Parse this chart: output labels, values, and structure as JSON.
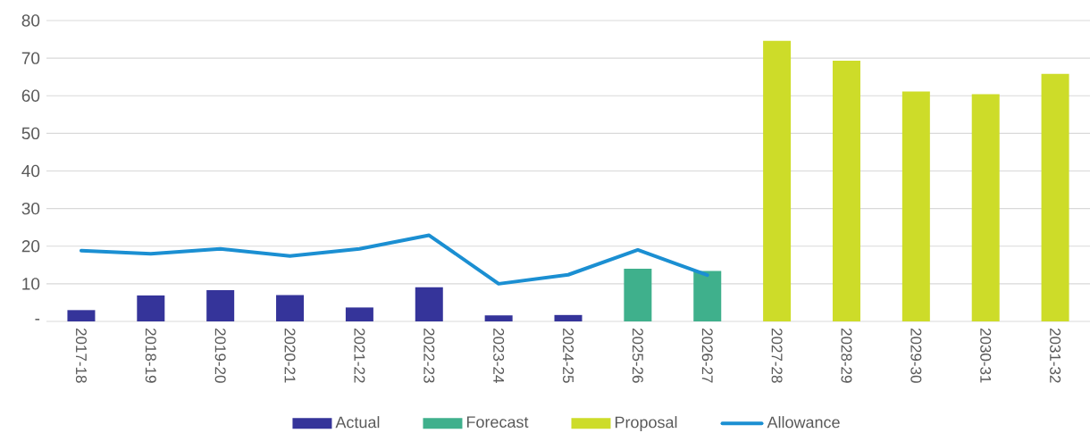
{
  "chart_data": {
    "type": "bar",
    "categories": [
      "2017-18",
      "2018-19",
      "2019-20",
      "2020-21",
      "2021-22",
      "2022-23",
      "2023-24",
      "2024-25",
      "2025-26",
      "2026-27",
      "2027-28",
      "2028-29",
      "2029-30",
      "2030-31",
      "2031-32"
    ],
    "series": [
      {
        "name": "Actual",
        "color": "#35349a",
        "values": [
          3.0,
          6.9,
          8.3,
          7.0,
          3.7,
          9.1,
          1.6,
          1.7,
          null,
          null,
          null,
          null,
          null,
          null,
          null
        ]
      },
      {
        "name": "Forecast",
        "color": "#3fb08c",
        "values": [
          null,
          null,
          null,
          null,
          null,
          null,
          null,
          null,
          14.0,
          13.4,
          null,
          null,
          null,
          null,
          null
        ]
      },
      {
        "name": "Proposal",
        "color": "#cddc29",
        "values": [
          null,
          null,
          null,
          null,
          null,
          null,
          null,
          null,
          null,
          null,
          74.6,
          69.3,
          61.1,
          60.4,
          65.8
        ]
      },
      {
        "name": "Allowance",
        "type": "line",
        "color": "#1b8fd2",
        "values": [
          18.8,
          18.0,
          19.3,
          17.4,
          19.3,
          22.9,
          10.0,
          12.4,
          19.0,
          12.3,
          null,
          null,
          null,
          null,
          null
        ]
      }
    ],
    "ylim": [
      0,
      80
    ],
    "yticks": [
      {
        "value": 0,
        "label": "-"
      },
      10,
      20,
      30,
      40,
      50,
      60,
      70,
      80
    ],
    "grid": "y",
    "legend": "bottom",
    "marker": "none",
    "line_style": "solid"
  }
}
